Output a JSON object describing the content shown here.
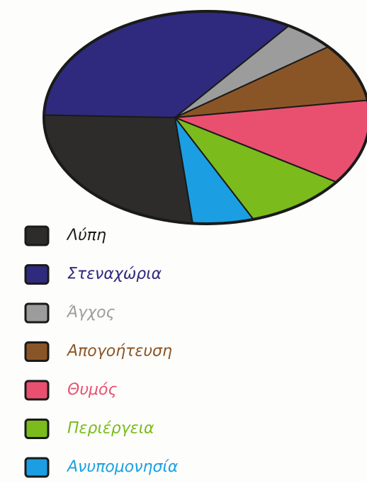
{
  "chart_data": {
    "type": "pie",
    "categories": [
      "Λύπη",
      "Στεναχώρια",
      "Άγχος",
      "Απογοήτευση",
      "Θυμός",
      "Περιέργεια",
      "Ανυπομονησία"
    ],
    "values": [
      24,
      33,
      5,
      9,
      13,
      10,
      6
    ],
    "colors": [
      "#2e2b2b",
      "#2f2a7e",
      "#9c9c9c",
      "#8a5526",
      "#e9506f",
      "#7bbb1c",
      "#1b9fe2"
    ]
  }
}
